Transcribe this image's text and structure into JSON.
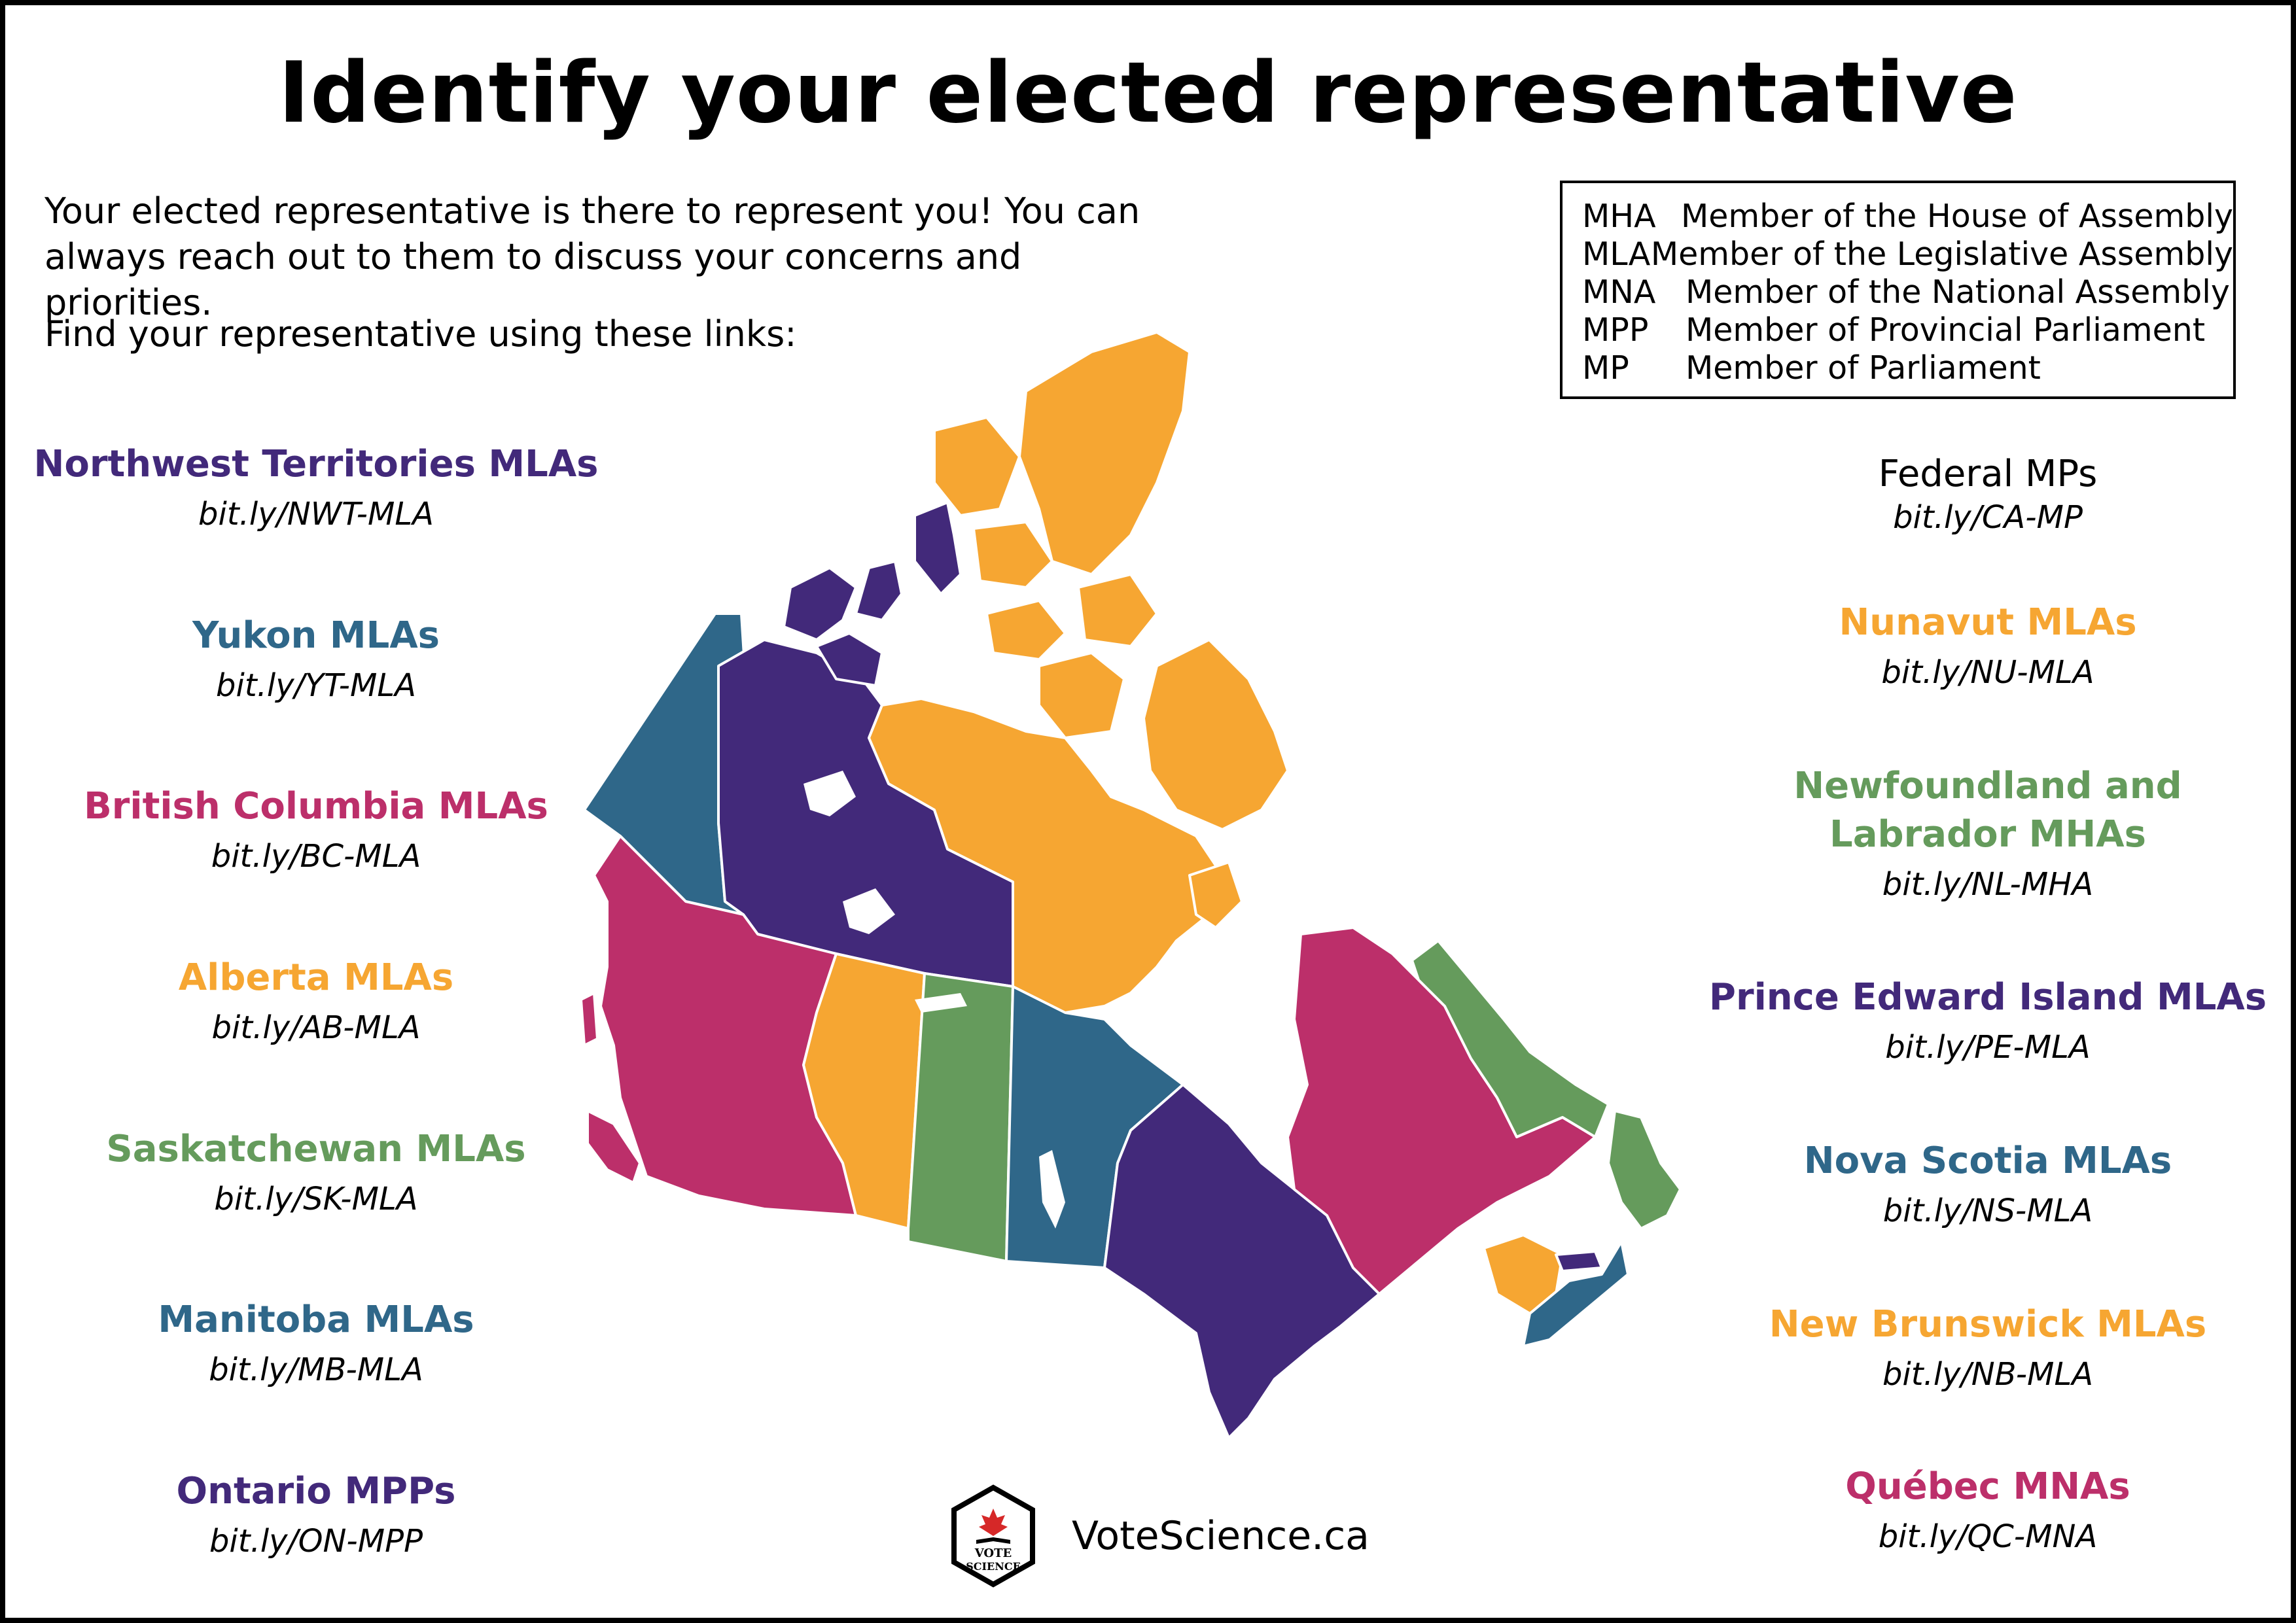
{
  "title": "Identify your elected representative",
  "intro": {
    "line1": "Your elected representative is there to represent you! You can",
    "line2": "always reach out to them to discuss your concerns and priorities.",
    "find": "Find your representative using these links:"
  },
  "legend": [
    {
      "abbr": "MHA",
      "full": "Member of the House of Assembly"
    },
    {
      "abbr": "MLA",
      "full": "Member of the Legislative Assembly"
    },
    {
      "abbr": "MNA",
      "full": "Member of the National Assembly"
    },
    {
      "abbr": "MPP",
      "full": "Member of Provincial Parliament"
    },
    {
      "abbr": "MP",
      "full": "Member of Parliament"
    }
  ],
  "colors": {
    "purple": "#42297a",
    "blue": "#2f6789",
    "magenta": "#bc2f6a",
    "orange": "#f6a632",
    "green": "#659b5c",
    "black": "#000000"
  },
  "left_links": [
    {
      "name": "Northwest Territories MLAs",
      "url": "bit.ly/NWT-MLA",
      "color": "#42297a"
    },
    {
      "name": "Yukon MLAs",
      "url": "bit.ly/YT-MLA",
      "color": "#2f6789"
    },
    {
      "name": "British Columbia MLAs",
      "url": "bit.ly/BC-MLA",
      "color": "#bc2f6a"
    },
    {
      "name": "Alberta MLAs",
      "url": "bit.ly/AB-MLA",
      "color": "#f6a632"
    },
    {
      "name": "Saskatchewan MLAs",
      "url": "bit.ly/SK-MLA",
      "color": "#659b5c"
    },
    {
      "name": "Manitoba MLAs",
      "url": "bit.ly/MB-MLA",
      "color": "#2f6789"
    },
    {
      "name": "Ontario MPPs",
      "url": "bit.ly/ON-MPP",
      "color": "#42297a"
    }
  ],
  "right_links": [
    {
      "name": "Federal MPs",
      "url": "bit.ly/CA-MP",
      "color": "#000000"
    },
    {
      "name": "Nunavut MLAs",
      "url": "bit.ly/NU-MLA",
      "color": "#f6a632"
    },
    {
      "name_line1": "Newfoundland and",
      "name_line2": "Labrador MHAs",
      "url": "bit.ly/NL-MHA",
      "color": "#659b5c"
    },
    {
      "name": "Prince Edward Island MLAs",
      "url": "bit.ly/PE-MLA",
      "color": "#42297a"
    },
    {
      "name": "Nova Scotia MLAs",
      "url": "bit.ly/NS-MLA",
      "color": "#2f6789"
    },
    {
      "name": "New Brunswick MLAs",
      "url": "bit.ly/NB-MLA",
      "color": "#f6a632"
    },
    {
      "name": "Québec MNAs",
      "url": "bit.ly/QC-MNA",
      "color": "#bc2f6a"
    }
  ],
  "logo": {
    "line1": "VOTE",
    "line2": "SCIENCE"
  },
  "site": "VoteScience.ca"
}
